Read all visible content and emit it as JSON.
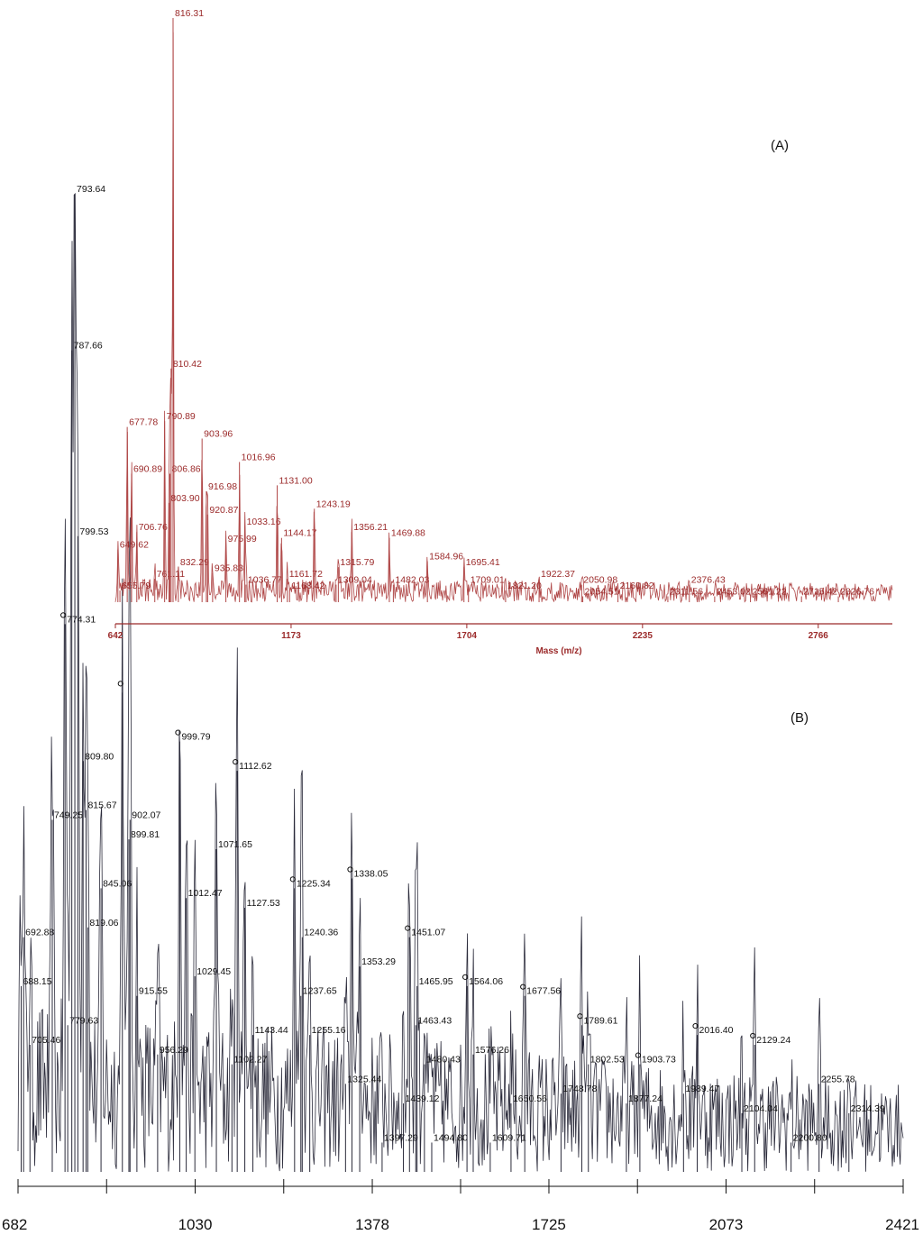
{
  "chart_data": [
    {
      "type": "line",
      "panel_label": "(A)",
      "xlabel": "Mass (m/z)",
      "ylabel": "",
      "xlim": [
        642,
        2990
      ],
      "ylim": [
        0,
        100
      ],
      "x_ticks": [
        "642",
        "1173",
        "1704",
        "2235",
        "2766"
      ],
      "color": "#9b2a2a",
      "peaks": [
        {
          "x": 649.62,
          "y": 9,
          "label": "649.62"
        },
        {
          "x": 655.79,
          "y": 2,
          "label": "655.79"
        },
        {
          "x": 677.78,
          "y": 30,
          "label": "677.78"
        },
        {
          "x": 690.89,
          "y": 22,
          "label": "690.89"
        },
        {
          "x": 706.76,
          "y": 12,
          "label": "706.76"
        },
        {
          "x": 761.11,
          "y": 4,
          "label": "761.11"
        },
        {
          "x": 790.89,
          "y": 31,
          "label": "790.89"
        },
        {
          "x": 803.9,
          "y": 17,
          "label": "803.90"
        },
        {
          "x": 806.86,
          "y": 22,
          "label": "806.86"
        },
        {
          "x": 810.42,
          "y": 40,
          "label": "810.42"
        },
        {
          "x": 816.31,
          "y": 100,
          "label": "816.31"
        },
        {
          "x": 832.29,
          "y": 6,
          "label": "832.29"
        },
        {
          "x": 903.96,
          "y": 28,
          "label": "903.96"
        },
        {
          "x": 916.98,
          "y": 19,
          "label": "916.98"
        },
        {
          "x": 920.87,
          "y": 15,
          "label": "920.87"
        },
        {
          "x": 935.83,
          "y": 5,
          "label": "935.83"
        },
        {
          "x": 975.99,
          "y": 10,
          "label": "975.99"
        },
        {
          "x": 1016.96,
          "y": 24,
          "label": "1016.96"
        },
        {
          "x": 1033.16,
          "y": 13,
          "label": "1033.16"
        },
        {
          "x": 1036.77,
          "y": 3,
          "label": "1036.77"
        },
        {
          "x": 1131.0,
          "y": 20,
          "label": "1131.00"
        },
        {
          "x": 1144.17,
          "y": 11,
          "label": "1144.17"
        },
        {
          "x": 1161.72,
          "y": 4,
          "label": "1161.72"
        },
        {
          "x": 1168.42,
          "y": 2,
          "label": "1168.42"
        },
        {
          "x": 1243.19,
          "y": 16,
          "label": "1243.19"
        },
        {
          "x": 1309.04,
          "y": 3,
          "label": "1309.04"
        },
        {
          "x": 1315.79,
          "y": 6,
          "label": "1315.79"
        },
        {
          "x": 1356.21,
          "y": 12,
          "label": "1356.21"
        },
        {
          "x": 1469.88,
          "y": 11,
          "label": "1469.88"
        },
        {
          "x": 1482.03,
          "y": 3,
          "label": "1482.03"
        },
        {
          "x": 1584.96,
          "y": 7,
          "label": "1584.96"
        },
        {
          "x": 1695.41,
          "y": 6,
          "label": "1695.41"
        },
        {
          "x": 1709.01,
          "y": 3,
          "label": "1709.01"
        },
        {
          "x": 1821.2,
          "y": 2,
          "label": "1821.20"
        },
        {
          "x": 1922.37,
          "y": 4,
          "label": "1922.37"
        },
        {
          "x": 2050.98,
          "y": 3,
          "label": "2050.98"
        },
        {
          "x": 2054.51,
          "y": 1,
          "label": "2054.51"
        },
        {
          "x": 2160.82,
          "y": 2,
          "label": "2160.82"
        },
        {
          "x": 2311.56,
          "y": 1,
          "label": "2311.56"
        },
        {
          "x": 2376.43,
          "y": 3,
          "label": "2376.43"
        },
        {
          "x": 2453.02,
          "y": 1,
          "label": "2453.02"
        },
        {
          "x": 2561.22,
          "y": 1,
          "label": "2561.22"
        },
        {
          "x": 2715.42,
          "y": 1,
          "label": "2715.42"
        },
        {
          "x": 2826.76,
          "y": 1,
          "label": "2826.76"
        }
      ]
    },
    {
      "type": "line",
      "panel_label": "(B)",
      "xlabel": "",
      "ylabel": "",
      "xlim": [
        682,
        2421
      ],
      "ylim": [
        0,
        100
      ],
      "x_ticks": [
        "682",
        "1030",
        "1378",
        "1725",
        "2073",
        "2421"
      ],
      "color": "#111111",
      "peaks": [
        {
          "x": 688.15,
          "y": 19,
          "label": "688.15",
          "marked": false
        },
        {
          "x": 692.88,
          "y": 24,
          "label": "692.88",
          "marked": false
        },
        {
          "x": 705.46,
          "y": 13,
          "label": "705.46",
          "marked": false
        },
        {
          "x": 749.25,
          "y": 36,
          "label": "749.25",
          "marked": false
        },
        {
          "x": 774.31,
          "y": 56,
          "label": "774.31",
          "marked": true
        },
        {
          "x": 779.63,
          "y": 15,
          "label": "779.63",
          "marked": false
        },
        {
          "x": 787.66,
          "y": 84,
          "label": "787.66",
          "marked": false
        },
        {
          "x": 793.64,
          "y": 100,
          "label": "793.64",
          "marked": false
        },
        {
          "x": 799.53,
          "y": 65,
          "label": "799.53",
          "marked": false
        },
        {
          "x": 809.8,
          "y": 42,
          "label": "809.80",
          "marked": false
        },
        {
          "x": 815.67,
          "y": 37,
          "label": "815.67",
          "marked": false
        },
        {
          "x": 819.06,
          "y": 25,
          "label": "819.06",
          "marked": false
        },
        {
          "x": 845.06,
          "y": 29,
          "label": "845.06",
          "marked": false
        },
        {
          "x": 887.0,
          "y": 49,
          "label": "",
          "marked": true
        },
        {
          "x": 899.81,
          "y": 34,
          "label": "899.81",
          "marked": false
        },
        {
          "x": 902.07,
          "y": 36,
          "label": "902.07",
          "marked": false
        },
        {
          "x": 915.55,
          "y": 18,
          "label": "915.55",
          "marked": false
        },
        {
          "x": 956.29,
          "y": 12,
          "label": "956.29",
          "marked": false
        },
        {
          "x": 999.79,
          "y": 44,
          "label": "999.79",
          "marked": true
        },
        {
          "x": 1012.47,
          "y": 28,
          "label": "1012.47",
          "marked": false
        },
        {
          "x": 1029.45,
          "y": 20,
          "label": "1029.45",
          "marked": false
        },
        {
          "x": 1071.65,
          "y": 33,
          "label": "1071.65",
          "marked": false
        },
        {
          "x": 1102.27,
          "y": 11,
          "label": "1102.27",
          "marked": false
        },
        {
          "x": 1112.62,
          "y": 41,
          "label": "1112.62",
          "marked": true
        },
        {
          "x": 1127.53,
          "y": 27,
          "label": "1127.53",
          "marked": false
        },
        {
          "x": 1143.44,
          "y": 14,
          "label": "1143.44",
          "marked": false
        },
        {
          "x": 1225.34,
          "y": 29,
          "label": "1225.34",
          "marked": true
        },
        {
          "x": 1237.65,
          "y": 18,
          "label": "1237.65",
          "marked": false
        },
        {
          "x": 1240.36,
          "y": 24,
          "label": "1240.36",
          "marked": false
        },
        {
          "x": 1255.16,
          "y": 14,
          "label": "1255.16",
          "marked": false
        },
        {
          "x": 1325.44,
          "y": 9,
          "label": "1325.44",
          "marked": false
        },
        {
          "x": 1338.05,
          "y": 30,
          "label": "1338.05",
          "marked": true
        },
        {
          "x": 1353.29,
          "y": 21,
          "label": "1353.29",
          "marked": false
        },
        {
          "x": 1397.29,
          "y": 3,
          "label": "1397.29",
          "marked": false
        },
        {
          "x": 1439.12,
          "y": 7,
          "label": "1439.12",
          "marked": false
        },
        {
          "x": 1451.07,
          "y": 24,
          "label": "1451.07",
          "marked": true
        },
        {
          "x": 1463.43,
          "y": 15,
          "label": "1463.43",
          "marked": false
        },
        {
          "x": 1465.95,
          "y": 19,
          "label": "1465.95",
          "marked": false
        },
        {
          "x": 1480.43,
          "y": 11,
          "label": "1480.43",
          "marked": false
        },
        {
          "x": 1494.8,
          "y": 3,
          "label": "1494.80",
          "marked": false
        },
        {
          "x": 1564.06,
          "y": 19,
          "label": "1564.06",
          "marked": true
        },
        {
          "x": 1576.26,
          "y": 12,
          "label": "1576.26",
          "marked": false
        },
        {
          "x": 1609.71,
          "y": 3,
          "label": "1609.71",
          "marked": false
        },
        {
          "x": 1650.56,
          "y": 7,
          "label": "1650.56",
          "marked": false
        },
        {
          "x": 1677.56,
          "y": 18,
          "label": "1677.56",
          "marked": true
        },
        {
          "x": 1748.78,
          "y": 8,
          "label": "1748.78",
          "marked": false
        },
        {
          "x": 1789.61,
          "y": 15,
          "label": "1789.61",
          "marked": true
        },
        {
          "x": 1802.53,
          "y": 11,
          "label": "1802.53",
          "marked": false
        },
        {
          "x": 1877.24,
          "y": 7,
          "label": "1877.24",
          "marked": false
        },
        {
          "x": 1903.73,
          "y": 11,
          "label": "1903.73",
          "marked": true
        },
        {
          "x": 1989.47,
          "y": 8,
          "label": "1989.47",
          "marked": false
        },
        {
          "x": 2016.4,
          "y": 14,
          "label": "2016.40",
          "marked": true
        },
        {
          "x": 2104.04,
          "y": 6,
          "label": "2104.04",
          "marked": false
        },
        {
          "x": 2129.24,
          "y": 13,
          "label": "2129.24",
          "marked": true
        },
        {
          "x": 2200.8,
          "y": 3,
          "label": "2200.80",
          "marked": false
        },
        {
          "x": 2255.78,
          "y": 9,
          "label": "2255.78",
          "marked": false
        },
        {
          "x": 2314.39,
          "y": 6,
          "label": "2314.39",
          "marked": false
        }
      ]
    }
  ]
}
